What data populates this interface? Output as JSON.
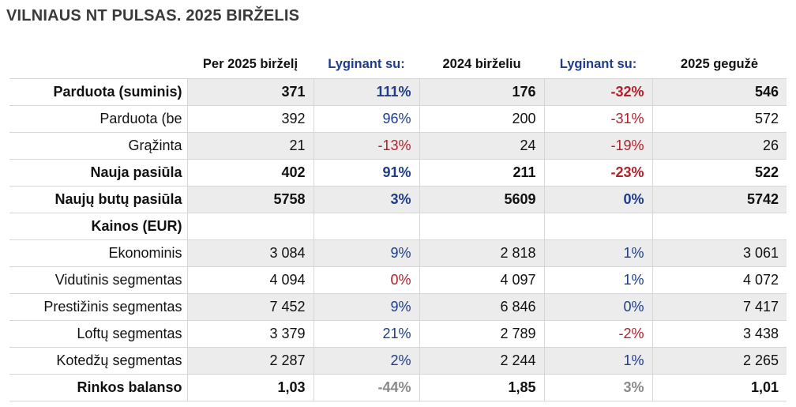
{
  "title": "VILNIAUS NT PULSAS. 2025 BIRŽELIS",
  "headers": [
    "",
    "Per 2025 birželį",
    "Lyginant su:",
    "2024 birželiu",
    "Lyginant su:",
    "2025 gegužė"
  ],
  "colors": {
    "positive": "#1f3c88",
    "negative": "#b0202a",
    "neutral": "#8a8a8a",
    "shade": "#ececec"
  },
  "rows": [
    {
      "label": "Parduota (suminis)",
      "bold": true,
      "shade": true,
      "v1": "371",
      "c1": "111%",
      "c1_tone": "pos",
      "v2": "176",
      "c2": "-32%",
      "c2_tone": "neg",
      "v3": "546"
    },
    {
      "label": "Parduota (be",
      "bold": false,
      "shade": false,
      "v1": "392",
      "c1": "96%",
      "c1_tone": "pos",
      "v2": "200",
      "c2": "-31%",
      "c2_tone": "neg",
      "v3": "572"
    },
    {
      "label": "Grąžinta",
      "bold": false,
      "shade": true,
      "v1": "21",
      "c1": "-13%",
      "c1_tone": "neg",
      "v2": "24",
      "c2": "-19%",
      "c2_tone": "neg",
      "v3": "26"
    },
    {
      "label": "Nauja pasiūla",
      "bold": true,
      "shade": false,
      "v1": "402",
      "c1": "91%",
      "c1_tone": "pos",
      "v2": "211",
      "c2": "-23%",
      "c2_tone": "neg",
      "v3": "522"
    },
    {
      "label": "Naujų butų pasiūla",
      "bold": true,
      "shade": true,
      "v1": "5758",
      "c1": "3%",
      "c1_tone": "pos",
      "v2": "5609",
      "c2": "0%",
      "c2_tone": "pos",
      "v3": "5742"
    },
    {
      "label": "Kainos (EUR)",
      "bold": true,
      "shade": false,
      "v1": "",
      "c1": "",
      "c1_tone": "pos",
      "v2": "",
      "c2": "",
      "c2_tone": "pos",
      "v3": ""
    },
    {
      "label": "Ekonominis",
      "bold": false,
      "shade": true,
      "v1": "3 084",
      "c1": "9%",
      "c1_tone": "pos",
      "v2": "2 818",
      "c2": "1%",
      "c2_tone": "pos",
      "v3": "3 061"
    },
    {
      "label": "Vidutinis segmentas",
      "bold": false,
      "shade": false,
      "v1": "4 094",
      "c1": "0%",
      "c1_tone": "neg",
      "v2": "4 097",
      "c2": "1%",
      "c2_tone": "pos",
      "v3": "4 072"
    },
    {
      "label": "Prestižinis segmentas",
      "bold": false,
      "shade": true,
      "v1": "7 452",
      "c1": "9%",
      "c1_tone": "pos",
      "v2": "6 846",
      "c2": "0%",
      "c2_tone": "pos",
      "v3": "7 417"
    },
    {
      "label": "Loftų segmentas",
      "bold": false,
      "shade": false,
      "v1": "3 379",
      "c1": "21%",
      "c1_tone": "pos",
      "v2": "2 789",
      "c2": "-2%",
      "c2_tone": "neg",
      "v3": "3 438"
    },
    {
      "label": "Kotedžų segmentas",
      "bold": false,
      "shade": true,
      "v1": "2 287",
      "c1": "2%",
      "c1_tone": "pos",
      "v2": "2 244",
      "c2": "1%",
      "c2_tone": "pos",
      "v3": "2 265"
    },
    {
      "label": "Rinkos balanso",
      "bold": true,
      "shade": false,
      "v1": "1,03",
      "c1": "-44%",
      "c1_tone": "neu",
      "v2": "1,85",
      "c2": "3%",
      "c2_tone": "neu",
      "v3": "1,01"
    }
  ]
}
